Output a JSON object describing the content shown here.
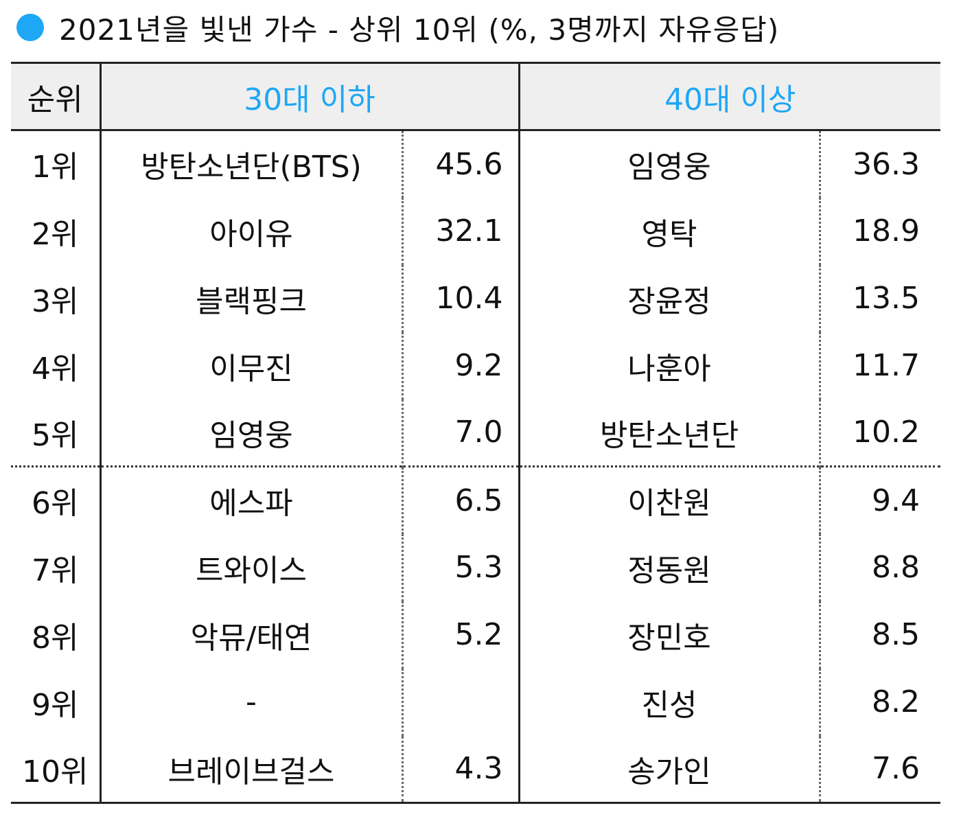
{
  "title": "2021년을 빛낸 가수 - 상위 10위 (%, 3명까지 자유응답)",
  "colors": {
    "accent": "#1ea7f5",
    "header_bg": "#efefef"
  },
  "headers": {
    "rank": "순위",
    "group1": "30대 이하",
    "group2": "40대 이상"
  },
  "rows": [
    {
      "rank": "1위",
      "name1": "방탄소년단(BTS)",
      "value1": "45.6",
      "name2": "임영웅",
      "value2": "36.3"
    },
    {
      "rank": "2위",
      "name1": "아이유",
      "value1": "32.1",
      "name2": "영탁",
      "value2": "18.9"
    },
    {
      "rank": "3위",
      "name1": "블랙핑크",
      "value1": "10.4",
      "name2": "장윤정",
      "value2": "13.5"
    },
    {
      "rank": "4위",
      "name1": "이무진",
      "value1": "9.2",
      "name2": "나훈아",
      "value2": "11.7"
    },
    {
      "rank": "5위",
      "name1": "임영웅",
      "value1": "7.0",
      "name2": "방탄소년단",
      "value2": "10.2"
    },
    {
      "rank": "6위",
      "name1": "에스파",
      "value1": "6.5",
      "name2": "이찬원",
      "value2": "9.4"
    },
    {
      "rank": "7위",
      "name1": "트와이스",
      "value1": "5.3",
      "name2": "정동원",
      "value2": "8.8"
    },
    {
      "rank": "8위",
      "name1": "악뮤/태연",
      "value1": "5.2",
      "name2": "장민호",
      "value2": "8.5"
    },
    {
      "rank": "9위",
      "name1": "-",
      "value1": "",
      "name2": "진성",
      "value2": "8.2"
    },
    {
      "rank": "10위",
      "name1": "브레이브걸스",
      "value1": "4.3",
      "name2": "송가인",
      "value2": "7.6"
    }
  ]
}
